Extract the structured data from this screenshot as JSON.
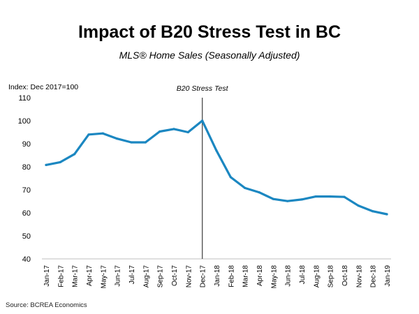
{
  "chart_data": {
    "type": "line",
    "title": "Impact of B20 Stress Test in BC",
    "subtitle": "MLS® Home Sales (Seasonally Adjusted)",
    "ylabel": "Index: Dec 2017=100",
    "xlabel": "",
    "ylim": [
      40,
      110
    ],
    "yticks": [
      40,
      50,
      60,
      70,
      80,
      90,
      100,
      110
    ],
    "categories": [
      "Jan-17",
      "Feb-17",
      "Mar-17",
      "Apr-17",
      "May-17",
      "Jun-17",
      "Jul-17",
      "Aug-17",
      "Sep-17",
      "Oct-17",
      "Nov-17",
      "Dec-17",
      "Jan-18",
      "Feb-18",
      "Mar-18",
      "Apr-18",
      "May-18",
      "Jun-18",
      "Jul-18",
      "Aug-18",
      "Sep-18",
      "Oct-18",
      "Nov-18",
      "Dec-18",
      "Jan-19"
    ],
    "series": [
      {
        "values": [
          80.8,
          82.0,
          85.5,
          94.0,
          94.5,
          92.2,
          90.6,
          90.6,
          95.3,
          96.4,
          95.0,
          100.0,
          87.0,
          75.5,
          70.8,
          68.9,
          66.0,
          65.1,
          65.8,
          67.1,
          67.1,
          66.9,
          63.1,
          60.7,
          59.4
        ]
      }
    ],
    "annotation": {
      "label": "B20 Stress Test",
      "at": "Dec-17"
    },
    "grid": false,
    "legend": "none",
    "line_color": "#1b87c1",
    "marker_line_color": "#555555"
  },
  "source": "Source: BCREA Economics"
}
